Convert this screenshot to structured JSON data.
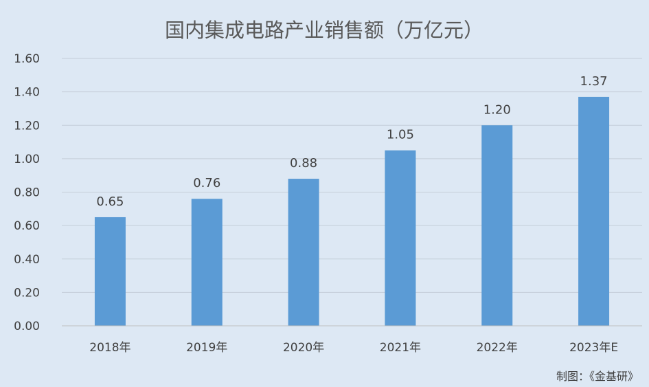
{
  "chart_data": {
    "type": "bar",
    "title": "国内集成电路产业销售额（万亿元）",
    "categories": [
      "2018年",
      "2019年",
      "2020年",
      "2021年",
      "2022年",
      "2023年E"
    ],
    "values": [
      0.65,
      0.76,
      0.88,
      1.05,
      1.2,
      1.37
    ],
    "value_labels": [
      "0.65",
      "0.76",
      "0.88",
      "1.05",
      "1.20",
      "1.37"
    ],
    "ylim": [
      0,
      1.6
    ],
    "yticks": [
      0,
      0.2,
      0.4,
      0.6,
      0.8,
      1.0,
      1.2,
      1.4,
      1.6
    ],
    "ytick_labels": [
      "0.00",
      "0.20",
      "0.40",
      "0.60",
      "0.80",
      "1.00",
      "1.20",
      "1.40",
      "1.60"
    ],
    "xlabel": "",
    "ylabel": "",
    "grid": true,
    "legend": "none",
    "bar_color": "#5b9bd5",
    "background_color": "#dde8f4"
  },
  "credit": "制图：《金基研》"
}
